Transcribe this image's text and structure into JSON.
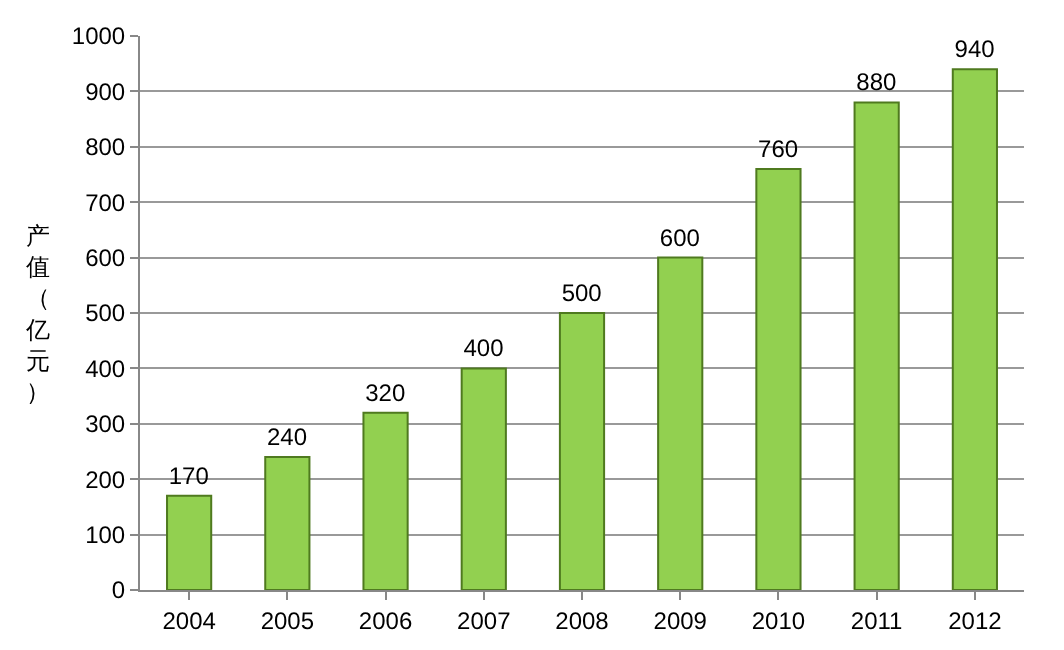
{
  "chart_data": {
    "type": "bar",
    "ylabel": "产值（亿元）",
    "categories": [
      "2004",
      "2005",
      "2006",
      "2007",
      "2008",
      "2009",
      "2010",
      "2011",
      "2012"
    ],
    "values": [
      170,
      240,
      320,
      400,
      500,
      600,
      760,
      880,
      940
    ],
    "color": "#92d050",
    "ylim": [
      0,
      1000
    ],
    "yticks": [
      0,
      100,
      200,
      300,
      400,
      500,
      600,
      700,
      800,
      900,
      1000
    ],
    "grid": "y",
    "data_labels": true
  }
}
